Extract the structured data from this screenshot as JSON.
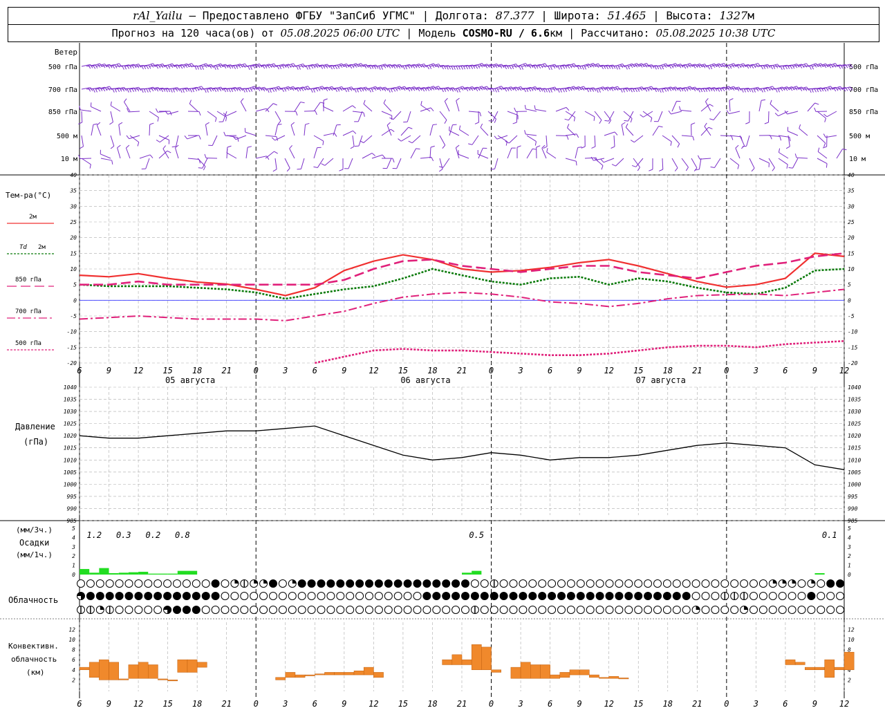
{
  "header": {
    "station": "rAl_Yailu",
    "provider": " — Предоставлено ФГБУ \"ЗапСиб УГМС\" | Долгота: ",
    "lon": "87.377",
    "lat_label": " | Широта: ",
    "lat": "51.465",
    "alt_label": " | Высота: ",
    "alt": "1327",
    "alt_unit": "м",
    "forecast_label": "Прогноз на 120 часа(ов) от ",
    "run": "05.08.2025 06:00 UTC",
    "model_label": "  | Модель ",
    "model": "COSMO-RU / 6.6",
    "model_unit": "км",
    "calc_label": " | Рассчитано: ",
    "calc": "05.08.2025 10:38 UTC"
  },
  "labels": {
    "wind": "Ветер",
    "wind_levels": [
      "500 гПа",
      "700 гПа",
      "850 гПа",
      "500 м",
      "10  м"
    ],
    "temp": "Тем-ра(°C)",
    "t2m": "2м",
    "td2m_a": "Td",
    "td2m_b": "2м",
    "t850": "850 гПа",
    "t700": "700 гПа",
    "t500": "500 гПа",
    "pressure": "Давление",
    "pressure_unit": "(гПа)",
    "precip_1": "(мм/3ч.)",
    "precip_2": "Осадки",
    "precip_3": "(мм/1ч.)",
    "clouds": "Облачность",
    "conv_1": "Конвективн.",
    "conv_2": "облачность",
    "conv_3": "(км)"
  },
  "time_axis": {
    "hour_labels": [
      "6",
      "9",
      "12",
      "15",
      "18",
      "21",
      "0",
      "3",
      "6",
      "9",
      "12",
      "15",
      "18",
      "21",
      "0",
      "3",
      "6",
      "9",
      "12",
      "15",
      "18",
      "21",
      "0",
      "3",
      "6",
      "9",
      "12"
    ],
    "dates": [
      "05 августа",
      "06 августа",
      "07 августа"
    ]
  },
  "colors": {
    "wind": "#7a2ec8",
    "t2m": "#f03030",
    "td2m": "#0a7a0a",
    "t850": "#e0207a",
    "t700": "#e0207a",
    "t500": "#e0207a",
    "zero": "#3030ff",
    "pressure": "#000000",
    "precip": "#22dd22",
    "conv": "#f0892c"
  },
  "chart_data": [
    {
      "type": "line",
      "title": "Тем-ра(°C)",
      "x_hours": [
        0,
        3,
        6,
        9,
        12,
        15,
        18,
        21,
        24,
        27,
        30,
        33,
        36,
        39,
        42,
        45,
        48,
        51,
        54,
        57,
        60,
        63,
        66,
        69,
        72,
        75,
        78
      ],
      "ylim": [
        -20,
        40
      ],
      "series": [
        {
          "name": "2м",
          "values": [
            8,
            7.5,
            8.5,
            7,
            5.8,
            5.2,
            3.5,
            1.5,
            4,
            9.5,
            12.5,
            14.5,
            13,
            10,
            9,
            9.5,
            10.5,
            12,
            13,
            11,
            8.5,
            6,
            4.2,
            5,
            7,
            15,
            14
          ]
        },
        {
          "name": "Td 2м",
          "values": [
            5,
            4.5,
            4.5,
            4.5,
            4,
            3.5,
            2.5,
            0.5,
            2,
            3.5,
            4.5,
            7,
            10,
            8,
            6,
            5,
            7,
            7.5,
            5,
            7,
            6,
            4,
            2.5,
            2,
            4,
            9.5,
            10
          ]
        },
        {
          "name": "850 гПа",
          "values": [
            5,
            5,
            6,
            5,
            5,
            5,
            5,
            5,
            5,
            6.5,
            10,
            12.5,
            13,
            11,
            10,
            9,
            10,
            11,
            11,
            9,
            8,
            7,
            9,
            11,
            12,
            14,
            15
          ]
        },
        {
          "name": "700 гПа",
          "values": [
            -6,
            -5.5,
            -5,
            -5.5,
            -6,
            -6,
            -6,
            -6.5,
            -5,
            -3.5,
            -1,
            1,
            2,
            2.5,
            2,
            1,
            -0.5,
            -1,
            -2,
            -1,
            0.5,
            1.5,
            1.8,
            2,
            1.5,
            2.5,
            3.5
          ]
        },
        {
          "name": "500 гПа",
          "values": [
            null,
            null,
            null,
            null,
            null,
            null,
            null,
            null,
            -20,
            -18,
            -16,
            -15.5,
            -16,
            -16,
            -16.5,
            -17,
            -17.5,
            -17.5,
            -17,
            -16,
            -15,
            -14.5,
            -14.5,
            -15,
            -14,
            -13.5,
            -13
          ]
        }
      ]
    },
    {
      "type": "line",
      "title": "Давление",
      "ylabel": "(гПа)",
      "x_hours": [
        0,
        3,
        6,
        9,
        12,
        15,
        18,
        21,
        24,
        27,
        30,
        33,
        36,
        39,
        42,
        45,
        48,
        51,
        54,
        57,
        60,
        63,
        66,
        69,
        72,
        75,
        78
      ],
      "ylim": [
        985,
        1040
      ],
      "series": [
        {
          "name": "Давление",
          "values": [
            1020,
            1019,
            1019,
            1020,
            1021,
            1022,
            1022,
            1023,
            1024,
            1020,
            1016,
            1012,
            1010,
            1011,
            1013,
            1012,
            1010,
            1011,
            1011,
            1012,
            1014,
            1016,
            1017,
            1016,
            1015,
            1008,
            1006
          ]
        }
      ]
    },
    {
      "type": "bar",
      "title": "Осадки",
      "ylabel": "(мм/3ч.) (мм/1ч.)",
      "ylim": [
        0,
        5
      ],
      "annotations": [
        {
          "hour": 1.5,
          "text": "1.2"
        },
        {
          "hour": 4.5,
          "text": "0.3"
        },
        {
          "hour": 7.5,
          "text": "0.2"
        },
        {
          "hour": 10.5,
          "text": "0.8"
        },
        {
          "hour": 40.5,
          "text": "0.5"
        },
        {
          "hour": 76.5,
          "text": "0.1"
        }
      ],
      "bars": [
        {
          "hour": 0,
          "value": 0.6
        },
        {
          "hour": 1,
          "value": 0.2
        },
        {
          "hour": 2,
          "value": 0.7
        },
        {
          "hour": 3,
          "value": 0.15
        },
        {
          "hour": 4,
          "value": 0.2
        },
        {
          "hour": 5,
          "value": 0.25
        },
        {
          "hour": 6,
          "value": 0.3
        },
        {
          "hour": 7,
          "value": 0.1
        },
        {
          "hour": 8,
          "value": 0.1
        },
        {
          "hour": 9,
          "value": 0.1
        },
        {
          "hour": 10,
          "value": 0.4
        },
        {
          "hour": 11,
          "value": 0.4
        },
        {
          "hour": 39,
          "value": 0.2
        },
        {
          "hour": 40,
          "value": 0.4
        },
        {
          "hour": 75,
          "value": 0.15
        }
      ]
    },
    {
      "type": "bar",
      "title": "Конвективн. облачность",
      "ylabel": "(км)",
      "ylim": [
        0,
        13
      ],
      "bars": [
        {
          "hour": 0,
          "base": 4,
          "top": 4.5
        },
        {
          "hour": 1,
          "base": 2.5,
          "top": 5.5
        },
        {
          "hour": 2,
          "base": 2,
          "top": 6
        },
        {
          "hour": 3,
          "base": 2,
          "top": 5.5
        },
        {
          "hour": 4,
          "base": 2,
          "top": 2.2
        },
        {
          "hour": 5,
          "base": 2.3,
          "top": 5
        },
        {
          "hour": 6,
          "base": 2.3,
          "top": 5.5
        },
        {
          "hour": 7,
          "base": 2.3,
          "top": 5
        },
        {
          "hour": 8,
          "base": 2,
          "top": 2.2
        },
        {
          "hour": 9,
          "base": 1.8,
          "top": 2
        },
        {
          "hour": 10,
          "base": 3.5,
          "top": 6
        },
        {
          "hour": 11,
          "base": 3.5,
          "top": 6
        },
        {
          "hour": 12,
          "base": 4.5,
          "top": 5.5
        },
        {
          "hour": 20,
          "base": 2,
          "top": 2.5
        },
        {
          "hour": 21,
          "base": 2.5,
          "top": 3.5
        },
        {
          "hour": 22,
          "base": 2.5,
          "top": 3
        },
        {
          "hour": 23,
          "base": 2.8,
          "top": 3
        },
        {
          "hour": 24,
          "base": 3,
          "top": 3.2
        },
        {
          "hour": 25,
          "base": 3,
          "top": 3.5
        },
        {
          "hour": 26,
          "base": 3,
          "top": 3.5
        },
        {
          "hour": 27,
          "base": 3,
          "top": 3.5
        },
        {
          "hour": 28,
          "base": 3,
          "top": 3.8
        },
        {
          "hour": 29,
          "base": 3,
          "top": 4.5
        },
        {
          "hour": 30,
          "base": 2.5,
          "top": 3.5
        },
        {
          "hour": 37,
          "base": 5,
          "top": 6
        },
        {
          "hour": 38,
          "base": 5,
          "top": 7
        },
        {
          "hour": 39,
          "base": 5,
          "top": 6
        },
        {
          "hour": 40,
          "base": 4,
          "top": 9
        },
        {
          "hour": 41,
          "base": 4,
          "top": 8.5
        },
        {
          "hour": 42,
          "base": 3.5,
          "top": 4
        },
        {
          "hour": 44,
          "base": 2.3,
          "top": 4.5
        },
        {
          "hour": 45,
          "base": 2.3,
          "top": 5.5
        },
        {
          "hour": 46,
          "base": 2.3,
          "top": 5
        },
        {
          "hour": 47,
          "base": 2.3,
          "top": 5
        },
        {
          "hour": 48,
          "base": 2.3,
          "top": 3
        },
        {
          "hour": 49,
          "base": 2.5,
          "top": 3.5
        },
        {
          "hour": 50,
          "base": 3,
          "top": 4
        },
        {
          "hour": 51,
          "base": 3,
          "top": 4
        },
        {
          "hour": 52,
          "base": 2.5,
          "top": 3
        },
        {
          "hour": 53,
          "base": 2.3,
          "top": 2.5
        },
        {
          "hour": 54,
          "base": 2.3,
          "top": 2.7
        },
        {
          "hour": 55,
          "base": 2.2,
          "top": 2.4
        },
        {
          "hour": 72,
          "base": 5,
          "top": 6
        },
        {
          "hour": 73,
          "base": 5,
          "top": 5.5
        },
        {
          "hour": 74,
          "base": 4,
          "top": 4.5
        },
        {
          "hour": 75,
          "base": 4,
          "top": 4.5
        },
        {
          "hour": 76,
          "base": 2.5,
          "top": 6
        },
        {
          "hour": 77,
          "base": 4,
          "top": 4.5
        },
        {
          "hour": 78,
          "base": 4,
          "top": 7.5
        }
      ]
    }
  ],
  "cloud_rows": [
    [
      0,
      0,
      0,
      0,
      0,
      0,
      0,
      0,
      0,
      0,
      0,
      0,
      0,
      0,
      4,
      0,
      1,
      2,
      1,
      1,
      4,
      0,
      1,
      4,
      4,
      4,
      4,
      4,
      4,
      4,
      4,
      4,
      4,
      4,
      4,
      4,
      4,
      4,
      4,
      4,
      4,
      0,
      0,
      2,
      0,
      0,
      0,
      0,
      0,
      0,
      0,
      0,
      0,
      0,
      0,
      0,
      0,
      0,
      0,
      0,
      0,
      0,
      0,
      0,
      0,
      0,
      0,
      0,
      0,
      0,
      0,
      0,
      1,
      1,
      1,
      0,
      1,
      0,
      4,
      4,
      4,
      4,
      4,
      4,
      4,
      4,
      4,
      4,
      4,
      4,
      4,
      4,
      4,
      4,
      4,
      4
    ],
    [
      3,
      4,
      4,
      4,
      4,
      4,
      4,
      4,
      4,
      4,
      4,
      4,
      4,
      4,
      4,
      0,
      0,
      0,
      0,
      0,
      0,
      0,
      0,
      0,
      0,
      0,
      0,
      0,
      0,
      0,
      0,
      0,
      0,
      0,
      0,
      0,
      4,
      4,
      4,
      4,
      4,
      4,
      4,
      4,
      4,
      4,
      4,
      4,
      4,
      4,
      4,
      4,
      4,
      4,
      4,
      4,
      4,
      4,
      4,
      4,
      4,
      4,
      4,
      4,
      0,
      0,
      0,
      2,
      2,
      2,
      0,
      0,
      0,
      0,
      0,
      0,
      4,
      0,
      0,
      0,
      0,
      0,
      0,
      0,
      0,
      0,
      0,
      0,
      0,
      0,
      0,
      0,
      0,
      0,
      0,
      0,
      0,
      0,
      0,
      0,
      0,
      0,
      3,
      0,
      0,
      0,
      0,
      0,
      0,
      0,
      0,
      0,
      0,
      0,
      0,
      0,
      0,
      0
    ],
    [
      2,
      2,
      1,
      2,
      0,
      0,
      0,
      0,
      0,
      3,
      4,
      4,
      4,
      0,
      0,
      0,
      0,
      0,
      0,
      0,
      0,
      0,
      0,
      0,
      0,
      0,
      0,
      0,
      0,
      0,
      0,
      0,
      0,
      0,
      0,
      0,
      0,
      0,
      0,
      0,
      0,
      2,
      0,
      0,
      0,
      0,
      0,
      0,
      0,
      0,
      0,
      0,
      0,
      0,
      0,
      0,
      0,
      0,
      0,
      0,
      0,
      0,
      0,
      0,
      1,
      0,
      0,
      0,
      0,
      1,
      0,
      0,
      0,
      0,
      0,
      0,
      0,
      0,
      0,
      0,
      0,
      0,
      1,
      1,
      0,
      0,
      0,
      0,
      0,
      0,
      0,
      0,
      0,
      0,
      0,
      0,
      0,
      0,
      0,
      0,
      0,
      0,
      0,
      0,
      0,
      0,
      0,
      0,
      0,
      1,
      0,
      0,
      0,
      0,
      0,
      0,
      0,
      0,
      0,
      0,
      0,
      0,
      0,
      1,
      0,
      0,
      0,
      0,
      0,
      0,
      0,
      0,
      0,
      0
    ]
  ]
}
